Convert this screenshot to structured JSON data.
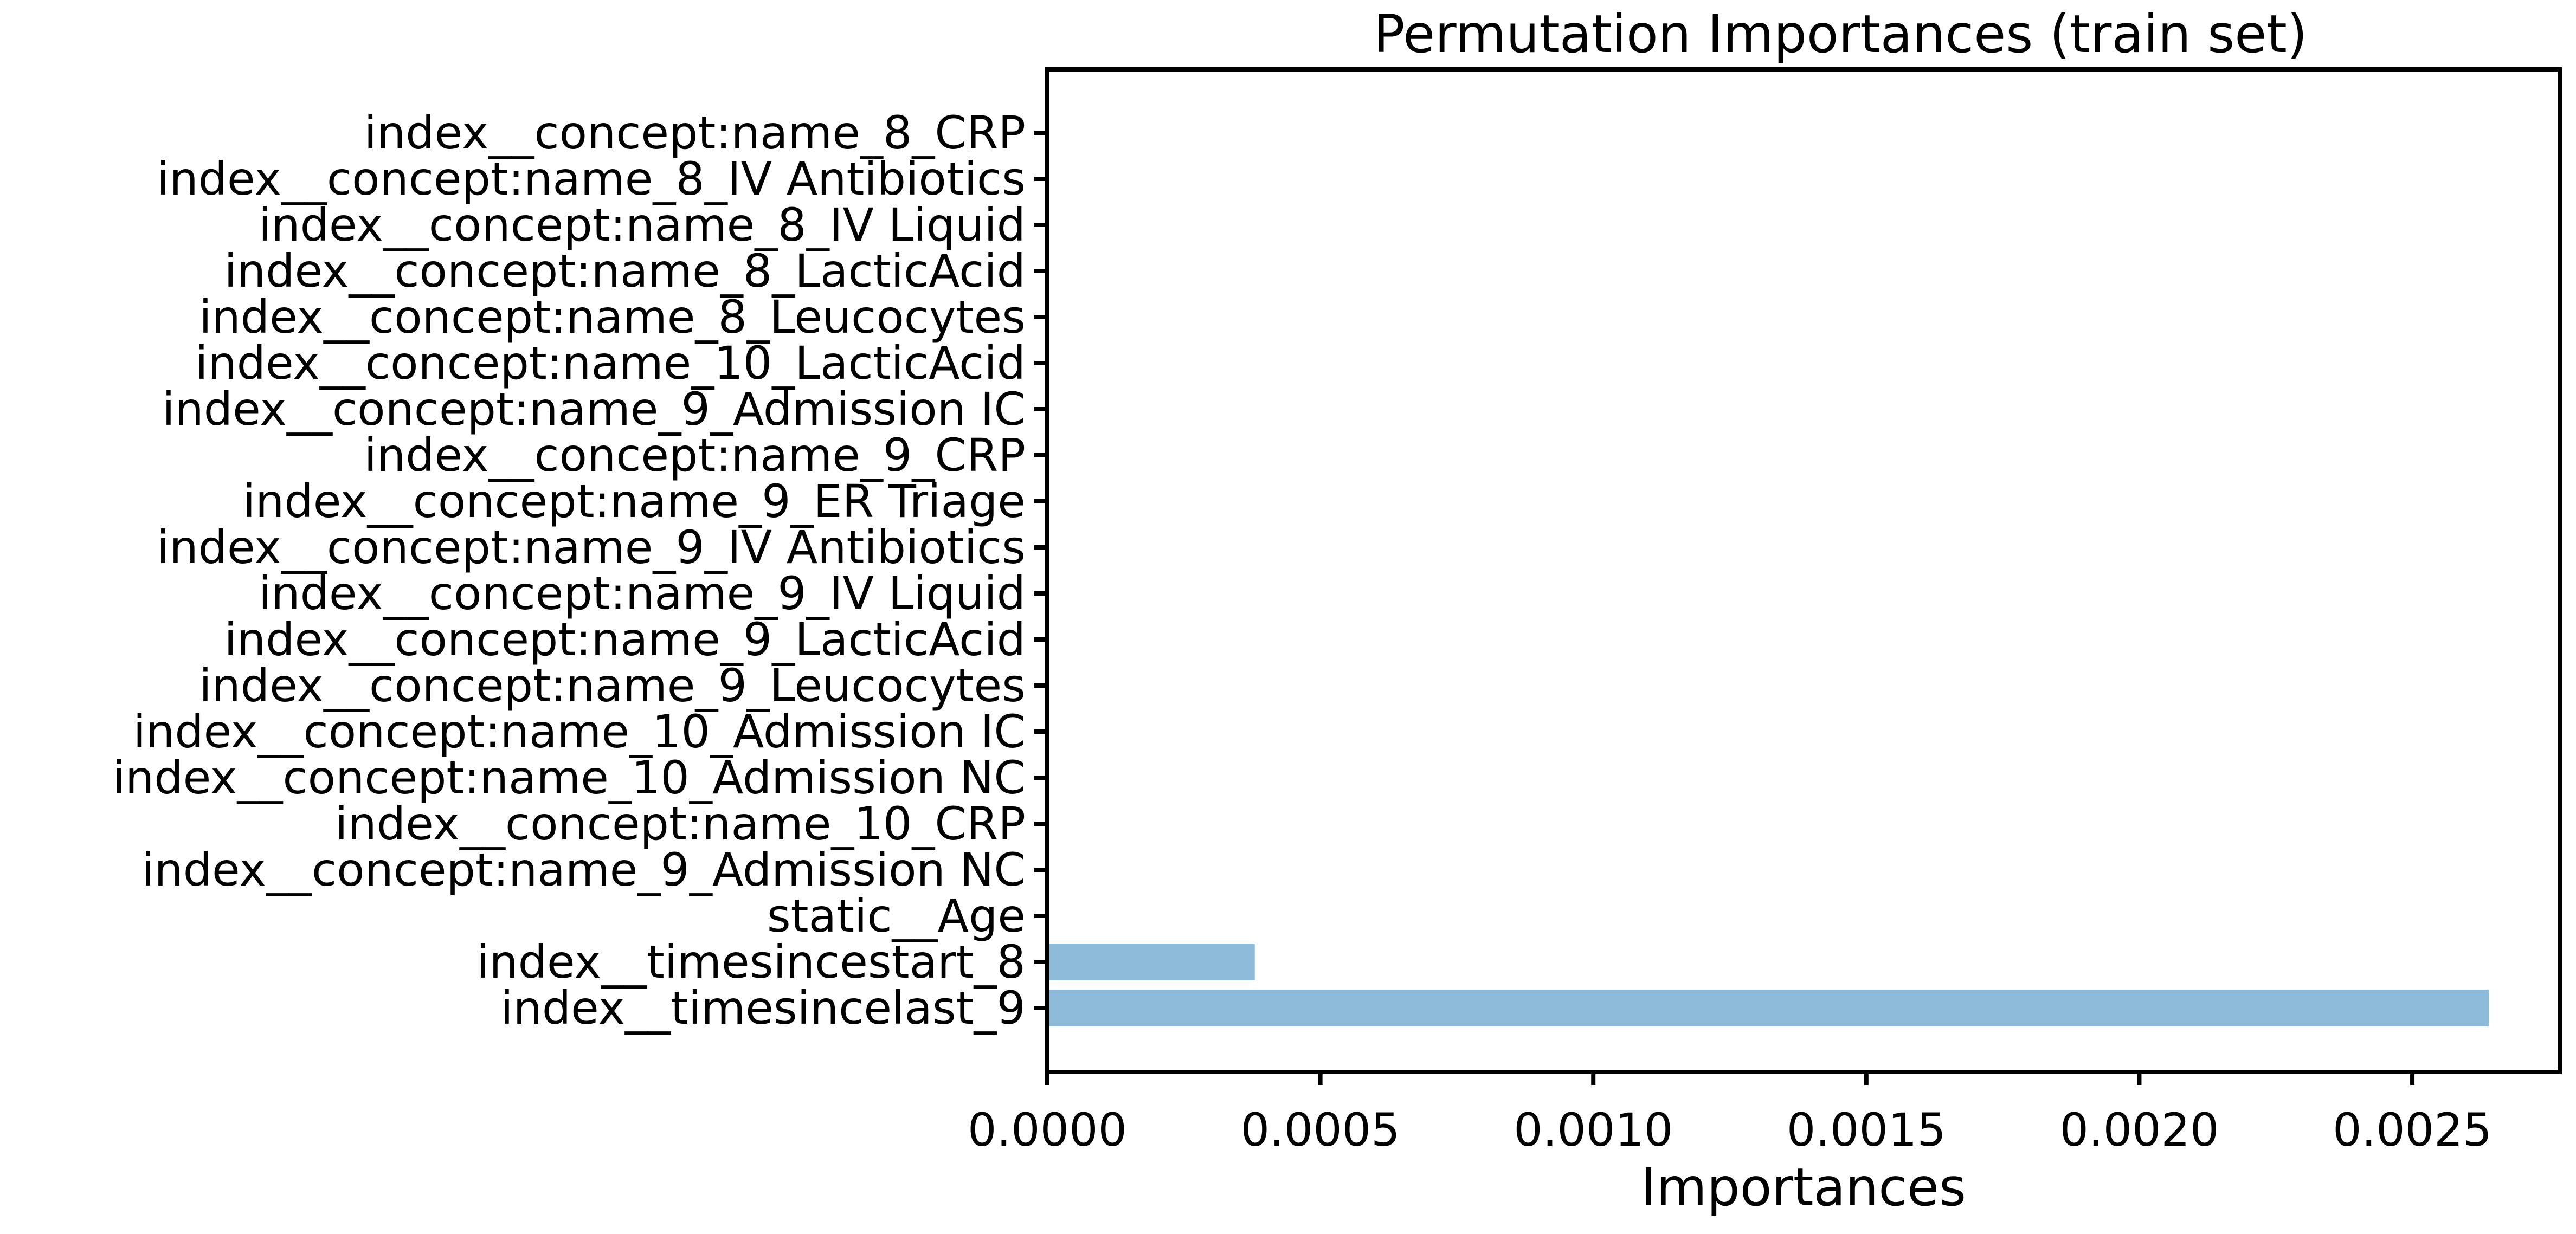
{
  "chart_data": {
    "type": "bar",
    "orientation": "horizontal",
    "title": "Permutation Importances (train set)",
    "xlabel": "Importances",
    "ylabel": "",
    "categories": [
      "index__concept:name_8_CRP",
      "index__concept:name_8_IV Antibiotics",
      "index__concept:name_8_IV Liquid",
      "index__concept:name_8_LacticAcid",
      "index__concept:name_8_Leucocytes",
      "index__concept:name_10_LacticAcid",
      "index__concept:name_9_Admission IC",
      "index__concept:name_9_CRP",
      "index__concept:name_9_ER Triage",
      "index__concept:name_9_IV Antibiotics",
      "index__concept:name_9_IV Liquid",
      "index__concept:name_9_LacticAcid",
      "index__concept:name_9_Leucocytes",
      "index__concept:name_10_Admission IC",
      "index__concept:name_10_Admission NC",
      "index__concept:name_10_CRP",
      "index__concept:name_9_Admission NC",
      "static__Age",
      "index__timesincestart_8",
      "index__timesincelast_9"
    ],
    "values": [
      0,
      0,
      0,
      0,
      0,
      0,
      0,
      0,
      0,
      0,
      0,
      0,
      0,
      0,
      0,
      0,
      0,
      0,
      0.00038,
      0.00264
    ],
    "xlim": [
      0,
      0.00277
    ],
    "xticks": [
      0,
      0.0005,
      0.001,
      0.0015,
      0.002,
      0.0025
    ],
    "xtick_labels": [
      "0.0000",
      "0.0005",
      "0.0010",
      "0.0015",
      "0.0020",
      "0.0025"
    ],
    "bar_color": "#8fbbda",
    "grid": false,
    "legend": "none"
  }
}
